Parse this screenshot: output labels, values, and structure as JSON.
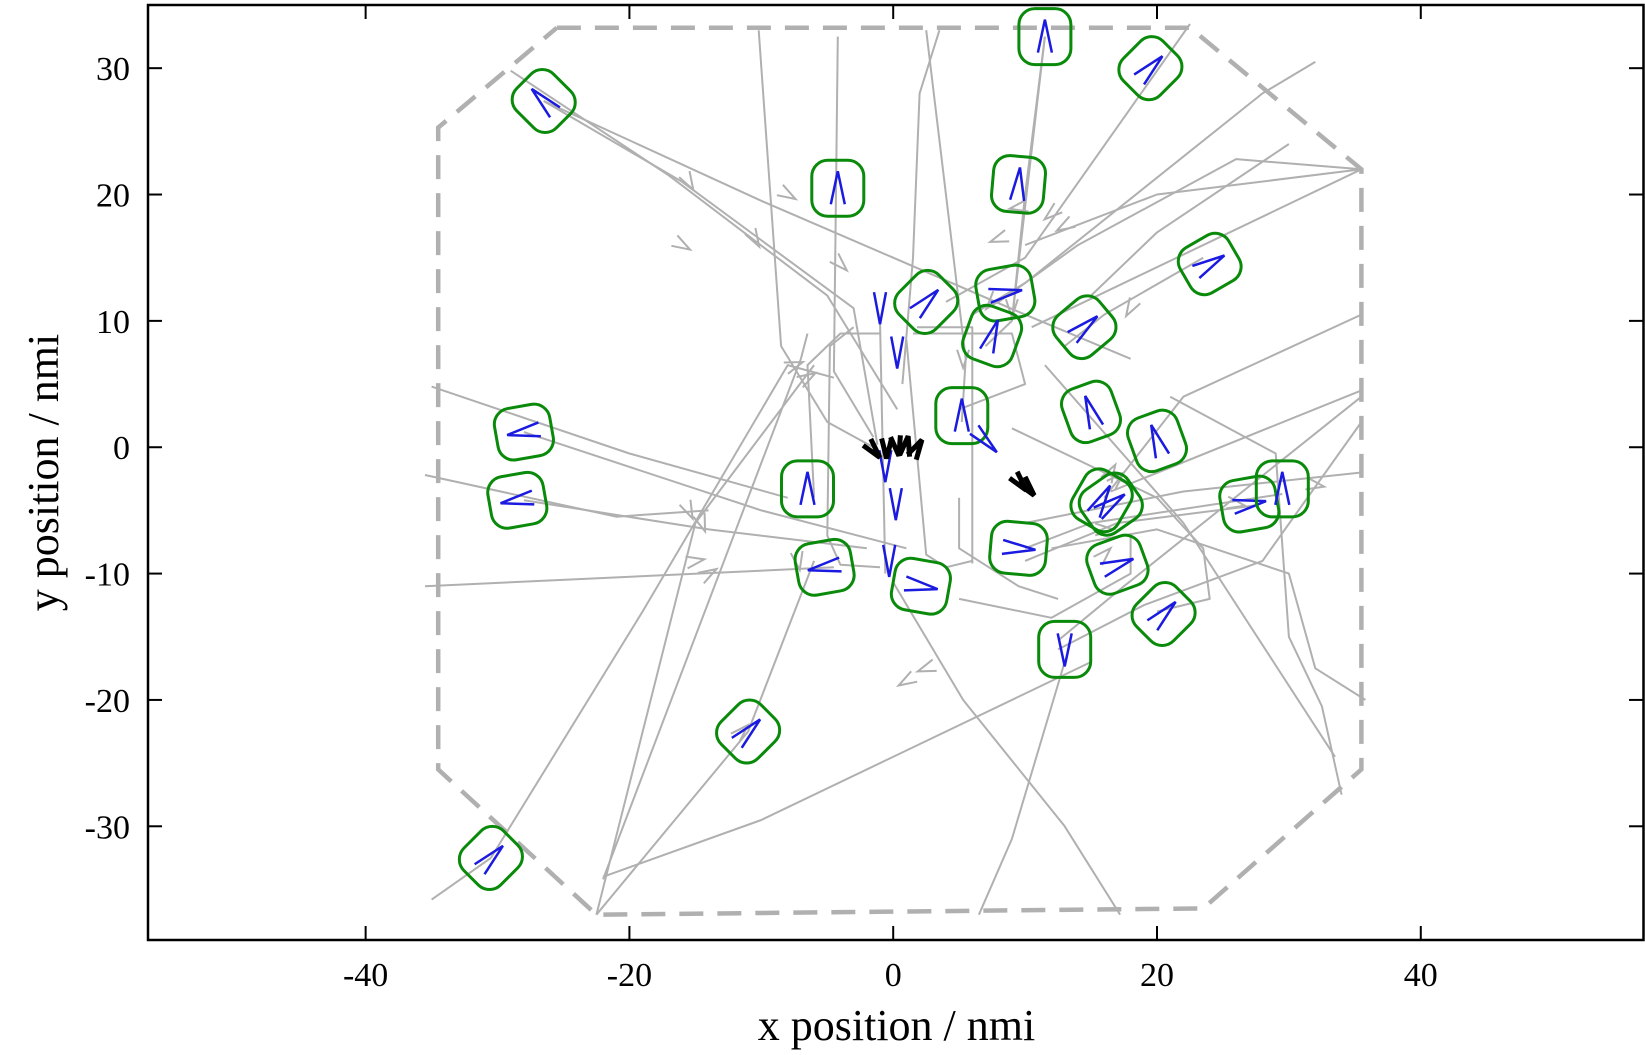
{
  "chart_data": {
    "type": "scatter",
    "xlabel": "x position / nmi",
    "ylabel": "y position / nmi",
    "xlim": [
      -56.5,
      57
    ],
    "ylim": [
      -39,
      35
    ],
    "xticks": [
      -40,
      -20,
      0,
      20,
      40
    ],
    "yticks": [
      -30,
      -20,
      -10,
      0,
      10,
      20,
      30
    ],
    "grid": false,
    "legend": "none",
    "colors": {
      "boundary": "#b0b0b0",
      "track": "#b0b0b0",
      "aircraft_box": "#0a8a0a",
      "aircraft_arrow": "#1a1ae0",
      "landed": "#000000"
    },
    "boundary": [
      [
        -25.5,
        33.2
      ],
      [
        22.5,
        33.2
      ],
      [
        35.5,
        22
      ],
      [
        35.5,
        -25.5
      ],
      [
        23.5,
        -36.5
      ],
      [
        -22.5,
        -37
      ],
      [
        -34.5,
        -25.5
      ],
      [
        -34.5,
        25.3
      ],
      [
        -25.5,
        33.2
      ]
    ],
    "tracks": [
      [
        [
          -26.5,
          27.4
        ],
        [
          -16,
          21
        ],
        [
          -3,
          11
        ],
        [
          -1.2,
          0.2
        ]
      ],
      [
        [
          -29,
          29.8
        ],
        [
          -17,
          21.5
        ],
        [
          -5,
          12
        ],
        [
          0.3,
          3
        ]
      ],
      [
        [
          -26.5,
          27.4
        ],
        [
          -10,
          19.5
        ],
        [
          10,
          10.5
        ],
        [
          18,
          7
        ]
      ],
      [
        [
          -10.2,
          33
        ],
        [
          -8.5,
          8
        ],
        [
          -5,
          2
        ],
        [
          -1.5,
          0
        ]
      ],
      [
        [
          -4.2,
          32.5
        ],
        [
          -4.5,
          6
        ],
        [
          -1.5,
          0.8
        ]
      ],
      [
        [
          2.5,
          33
        ],
        [
          5.5,
          7
        ],
        [
          5.2,
          2
        ]
      ],
      [
        [
          3.5,
          33
        ],
        [
          2,
          28
        ],
        [
          1.5,
          15
        ],
        [
          0.7,
          5
        ]
      ],
      [
        [
          11.5,
          32.5
        ],
        [
          9,
          10
        ],
        [
          7,
          8
        ]
      ],
      [
        [
          11.5,
          32.5
        ],
        [
          10,
          20
        ],
        [
          9,
          10
        ]
      ],
      [
        [
          22.5,
          33.5
        ],
        [
          10,
          15
        ],
        [
          4,
          11.5
        ]
      ],
      [
        [
          32,
          30.5
        ],
        [
          28,
          28
        ],
        [
          10,
          13
        ],
        [
          6,
          10.5
        ]
      ],
      [
        [
          35.5,
          22
        ],
        [
          26,
          22.8
        ],
        [
          14,
          16
        ],
        [
          8,
          11.5
        ]
      ],
      [
        [
          35.5,
          22
        ],
        [
          20,
          20
        ],
        [
          10,
          16
        ]
      ],
      [
        [
          35.5,
          22
        ],
        [
          10.5,
          9.5
        ]
      ],
      [
        [
          30,
          24
        ],
        [
          20,
          17
        ],
        [
          15,
          12
        ]
      ],
      [
        [
          23.5,
          15
        ],
        [
          16,
          10.5
        ],
        [
          13,
          8
        ]
      ],
      [
        [
          -28,
          1.2
        ],
        [
          -10,
          -5
        ],
        [
          1,
          -8
        ]
      ],
      [
        [
          -28,
          -4.2
        ],
        [
          -14,
          -6.5
        ],
        [
          -2,
          -8
        ]
      ],
      [
        [
          35.5,
          10.5
        ],
        [
          22,
          4
        ],
        [
          16,
          -4
        ]
      ],
      [
        [
          35.5,
          4.5
        ],
        [
          16.5,
          -3.5
        ]
      ],
      [
        [
          35.5,
          -2
        ],
        [
          22,
          -3.5
        ],
        [
          10,
          -6
        ]
      ],
      [
        [
          29.5,
          -3.7
        ],
        [
          15,
          -6
        ],
        [
          10,
          -8
        ]
      ],
      [
        [
          27.5,
          -4.6
        ],
        [
          17,
          -6
        ],
        [
          10,
          -9
        ]
      ],
      [
        [
          -30.5,
          -32.5
        ],
        [
          -35,
          -35.8
        ]
      ],
      [
        [
          -30.5,
          -32.5
        ],
        [
          -19,
          -13
        ],
        [
          -8,
          6.5
        ],
        [
          -4.5,
          5.5
        ]
      ],
      [
        [
          -22.5,
          -37
        ],
        [
          -15,
          -6
        ],
        [
          -6,
          6.5
        ]
      ],
      [
        [
          -22.5,
          -37
        ],
        [
          -11,
          -22.5
        ],
        [
          -6,
          -9
        ]
      ],
      [
        [
          -22,
          -34
        ],
        [
          -10,
          -29.5
        ],
        [
          15,
          -17
        ]
      ],
      [
        [
          -22,
          -34.2
        ],
        [
          -7,
          7
        ],
        [
          -6.5,
          9
        ]
      ],
      [
        [
          -35.5,
          -11
        ],
        [
          -4.5,
          -9.5
        ]
      ],
      [
        [
          -35.5,
          -2.2
        ],
        [
          -21,
          -5.5
        ],
        [
          -14,
          -5
        ]
      ],
      [
        [
          -35,
          4.8
        ],
        [
          -20,
          -0.5
        ],
        [
          -8,
          -4
        ]
      ],
      [
        [
          -6,
          -4
        ],
        [
          -6.5,
          6.5
        ],
        [
          -4,
          9
        ],
        [
          -1,
          9
        ]
      ],
      [
        [
          -3,
          9.5
        ],
        [
          -4.8,
          8
        ],
        [
          -5,
          -7
        ],
        [
          -4,
          -9.3
        ],
        [
          -1,
          -9.5
        ]
      ],
      [
        [
          -1,
          10
        ],
        [
          -0.6,
          -10
        ]
      ],
      [
        [
          1,
          8.5
        ],
        [
          2.5,
          -8.5
        ],
        [
          4,
          -9.5
        ],
        [
          6,
          -9
        ]
      ],
      [
        [
          1.5,
          9
        ],
        [
          9,
          9
        ],
        [
          10,
          5
        ],
        [
          5,
          3
        ]
      ],
      [
        [
          6,
          -9.2
        ],
        [
          6,
          9.5
        ],
        [
          1.8,
          9.5
        ]
      ],
      [
        [
          0,
          -10.7
        ],
        [
          5.3,
          -20
        ],
        [
          13,
          -30
        ],
        [
          17.2,
          -37
        ]
      ],
      [
        [
          5,
          -12
        ],
        [
          12,
          -13.5
        ],
        [
          18,
          -10
        ],
        [
          18,
          -7
        ]
      ],
      [
        [
          12.5,
          -15.3
        ],
        [
          17.5,
          -11
        ],
        [
          35.5,
          4
        ]
      ],
      [
        [
          13,
          -17
        ],
        [
          9,
          -31
        ],
        [
          6.5,
          -37
        ]
      ],
      [
        [
          34,
          -27.5
        ],
        [
          32.5,
          -20.5
        ],
        [
          30,
          -15
        ],
        [
          29,
          -0.5
        ],
        [
          21,
          4
        ]
      ],
      [
        [
          35.8,
          -20
        ],
        [
          32,
          -17.5
        ],
        [
          30,
          -10
        ],
        [
          20,
          -6.5
        ],
        [
          12,
          -8
        ]
      ],
      [
        [
          33.5,
          -24.5
        ],
        [
          22,
          -6
        ],
        [
          11.5,
          6.5
        ]
      ],
      [
        [
          9,
          1.5
        ],
        [
          20,
          -4
        ],
        [
          23.5,
          -8
        ],
        [
          24,
          -12
        ],
        [
          20,
          -13
        ]
      ],
      [
        [
          12.5,
          -12
        ],
        [
          9.5,
          -11
        ],
        [
          5,
          -8
        ],
        [
          5,
          -4
        ]
      ],
      [
        [
          12.5,
          -16
        ],
        [
          19,
          -12.5
        ],
        [
          28,
          -9
        ],
        [
          35.5,
          2
        ]
      ]
    ],
    "aircraft": [
      [
        -26.5,
        27.4,
        -45
      ],
      [
        11.5,
        32.5,
        0
      ],
      [
        19.5,
        30,
        45
      ],
      [
        -4.2,
        20.5,
        0
      ],
      [
        9.5,
        20.8,
        5
      ],
      [
        24,
        14.5,
        60
      ],
      [
        2.5,
        11.5,
        45
      ],
      [
        8.5,
        12.2,
        80
      ],
      [
        7.5,
        8.8,
        20
      ],
      [
        14.5,
        9.5,
        50
      ],
      [
        5.2,
        2.5,
        0
      ],
      [
        15,
        2.8,
        -20
      ],
      [
        20,
        0.5,
        -20
      ],
      [
        -28,
        1.2,
        -100
      ],
      [
        -6.5,
        -3.3,
        0
      ],
      [
        -28.5,
        -4.2,
        -100
      ],
      [
        -5.2,
        -9.5,
        -100
      ],
      [
        2.1,
        -11,
        100
      ],
      [
        9.5,
        -8,
        95
      ],
      [
        15.8,
        -4.2,
        30
      ],
      [
        16.5,
        -4.5,
        55
      ],
      [
        17,
        -9.3,
        70
      ],
      [
        20.5,
        -13.2,
        45
      ],
      [
        27,
        -4.5,
        80
      ],
      [
        29.5,
        -3.3,
        0
      ],
      [
        13,
        -16,
        180
      ],
      [
        -11,
        -22.5,
        45
      ],
      [
        -30.5,
        -32.5,
        45
      ]
    ],
    "inbound_arrows": [
      [
        -1,
        11,
        180
      ],
      [
        0.3,
        7.5,
        180
      ],
      [
        -0.6,
        -1.5,
        180
      ],
      [
        0.2,
        -4.5,
        180
      ],
      [
        -0.3,
        -9,
        180
      ],
      [
        7,
        0.5,
        135
      ]
    ],
    "landed": [
      [
        -1.5,
        -0.2,
        140
      ],
      [
        -0.5,
        -0.1,
        180
      ],
      [
        0.3,
        0.1,
        170
      ],
      [
        1,
        0.1,
        10
      ],
      [
        1.8,
        -0.1,
        30
      ],
      [
        9.6,
        -2.8,
        140
      ],
      [
        10.2,
        -3.2,
        140
      ]
    ],
    "track_arrows": [
      [
        -15.5,
        21,
        150
      ],
      [
        -8,
        20,
        120
      ],
      [
        -10.5,
        16.5,
        150
      ],
      [
        -16,
        16,
        120
      ],
      [
        -4,
        14.5,
        135
      ],
      [
        13,
        17.5,
        240
      ],
      [
        12,
        18.5,
        230
      ],
      [
        9.5,
        19,
        260
      ],
      [
        8,
        16.5,
        250
      ],
      [
        18,
        11,
        210
      ],
      [
        7.5,
        11.5,
        220
      ],
      [
        9,
        11,
        180
      ],
      [
        5.3,
        7,
        180
      ],
      [
        -11.5,
        -22.5,
        45
      ],
      [
        -15,
        -9,
        80
      ],
      [
        -14,
        -10,
        60
      ],
      [
        -15.5,
        -5,
        155
      ],
      [
        -14.5,
        -6,
        160
      ],
      [
        -7.2,
        -9,
        170
      ],
      [
        -6.5,
        5.5,
        60
      ],
      [
        -7.5,
        6.5,
        70
      ],
      [
        1,
        -18.5,
        240
      ],
      [
        2.5,
        -17.5,
        250
      ],
      [
        16,
        -8.5,
        45
      ],
      [
        16.5,
        -2,
        30
      ],
      [
        17,
        -2.5,
        45
      ],
      [
        16,
        -6.5,
        90
      ],
      [
        26,
        -4.5,
        100
      ],
      [
        32,
        -3,
        100
      ]
    ]
  }
}
